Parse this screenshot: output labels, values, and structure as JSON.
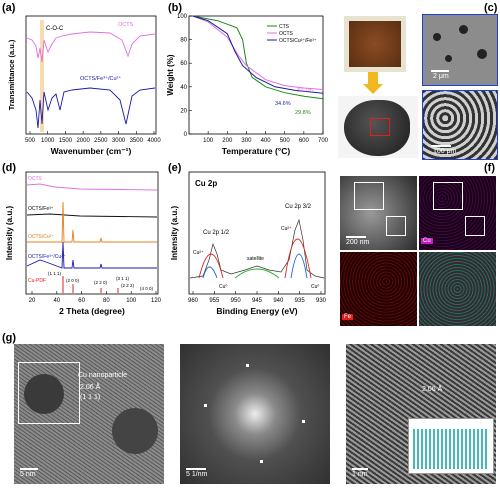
{
  "panels": {
    "a": {
      "label": "(a)",
      "ylabel": "Transmittance (a.u.)",
      "xlabel": "Wavenumber (cm⁻¹)",
      "xticks": [
        "500",
        "1000",
        "1500",
        "2000",
        "2500",
        "3000",
        "3500",
        "4000"
      ],
      "annot_coc": "C-O-C",
      "series": [
        {
          "name": "OCTS",
          "color": "#e070e0"
        },
        {
          "name": "OCTS/Fe³⁺/Cu²⁺",
          "color": "#1a1aa0"
        }
      ]
    },
    "b": {
      "label": "(b)",
      "ylabel": "Weight (%)",
      "xlabel": "Temperature (°C)",
      "xlim": [
        0,
        700
      ],
      "ylim": [
        0,
        100
      ],
      "xticks": [
        "100",
        "200",
        "300",
        "400",
        "500",
        "600",
        "700"
      ],
      "yticks": [
        "0",
        "20",
        "40",
        "60",
        "80",
        "100"
      ],
      "series": [
        {
          "name": "CTS",
          "color": "#1a8a1a",
          "points": [
            [
              20,
              100
            ],
            [
              150,
              96
            ],
            [
              250,
              90
            ],
            [
              280,
              80
            ],
            [
              300,
              60
            ],
            [
              330,
              48
            ],
            [
              400,
              40
            ],
            [
              500,
              35
            ],
            [
              600,
              32
            ],
            [
              700,
              29.8
            ]
          ]
        },
        {
          "name": "OCTS",
          "color": "#e070e0",
          "points": [
            [
              20,
              100
            ],
            [
              100,
              95
            ],
            [
              200,
              82
            ],
            [
              260,
              66
            ],
            [
              300,
              58
            ],
            [
              400,
              46
            ],
            [
              500,
              41
            ],
            [
              600,
              39
            ],
            [
              700,
              37.7
            ]
          ]
        },
        {
          "name": "OCTS/Cu²⁺/Fe³⁺",
          "color": "#1a1aa0",
          "points": [
            [
              20,
              100
            ],
            [
              100,
              96
            ],
            [
              200,
              85
            ],
            [
              240,
              70
            ],
            [
              280,
              58
            ],
            [
              350,
              48
            ],
            [
              450,
              40
            ],
            [
              550,
              37
            ],
            [
              700,
              34.6
            ]
          ]
        }
      ],
      "end_labels": [
        "37.7%",
        "34.6%",
        "29.8%"
      ]
    },
    "c": {
      "label": "(c)",
      "scale_top": "2 μm",
      "scale_bottom": "100 μm"
    },
    "d": {
      "label": "(d)",
      "ylabel": "Intensity (a.u.)",
      "xlabel": "2 Theta (degree)",
      "xticks": [
        "20",
        "40",
        "60",
        "80",
        "100",
        "120"
      ],
      "traces": [
        {
          "name": "OCTS",
          "color": "#e070e0"
        },
        {
          "name": "OCTS/Fe³⁺",
          "color": "#111111"
        },
        {
          "name": "OCTS/Cu²⁺",
          "color": "#e08020"
        },
        {
          "name": "OCTS/Fe³⁺/Cu²⁺",
          "color": "#1a1aa0"
        },
        {
          "name": "Cu-PDF",
          "color": "#e02020"
        }
      ],
      "miller": [
        "(1 1 1)",
        "(2 0 0)",
        "(2 2 0)",
        "(3 1 1)",
        "(2 2 2)",
        "(4 0 0)"
      ]
    },
    "e": {
      "label": "(e)",
      "title": "Cu 2p",
      "ylabel": "Intensity (a.u.)",
      "xlabel": "Binding Energy (eV)",
      "xticks": [
        "960",
        "955",
        "950",
        "945",
        "940",
        "935",
        "930"
      ],
      "peaks": [
        "Cu 2p 1/2",
        "Cu 2p 3/2"
      ],
      "annotations": [
        "Cu²⁺",
        "Cu⁰",
        "satellite",
        "Cu²⁺",
        "Cu⁰"
      ]
    },
    "f": {
      "label": "(f)",
      "scale": "200 nm",
      "elements": [
        "Cu",
        "Fe"
      ]
    },
    "g": {
      "label": "(g)",
      "annot1": "Cu nanoparticle",
      "annot2": "2.06 Å",
      "annot3": "(1 1 1)",
      "scale1": "5 nm",
      "scale2": "5 1/nm",
      "spacing": "2.06 Å",
      "scale3": "1 nm"
    }
  }
}
